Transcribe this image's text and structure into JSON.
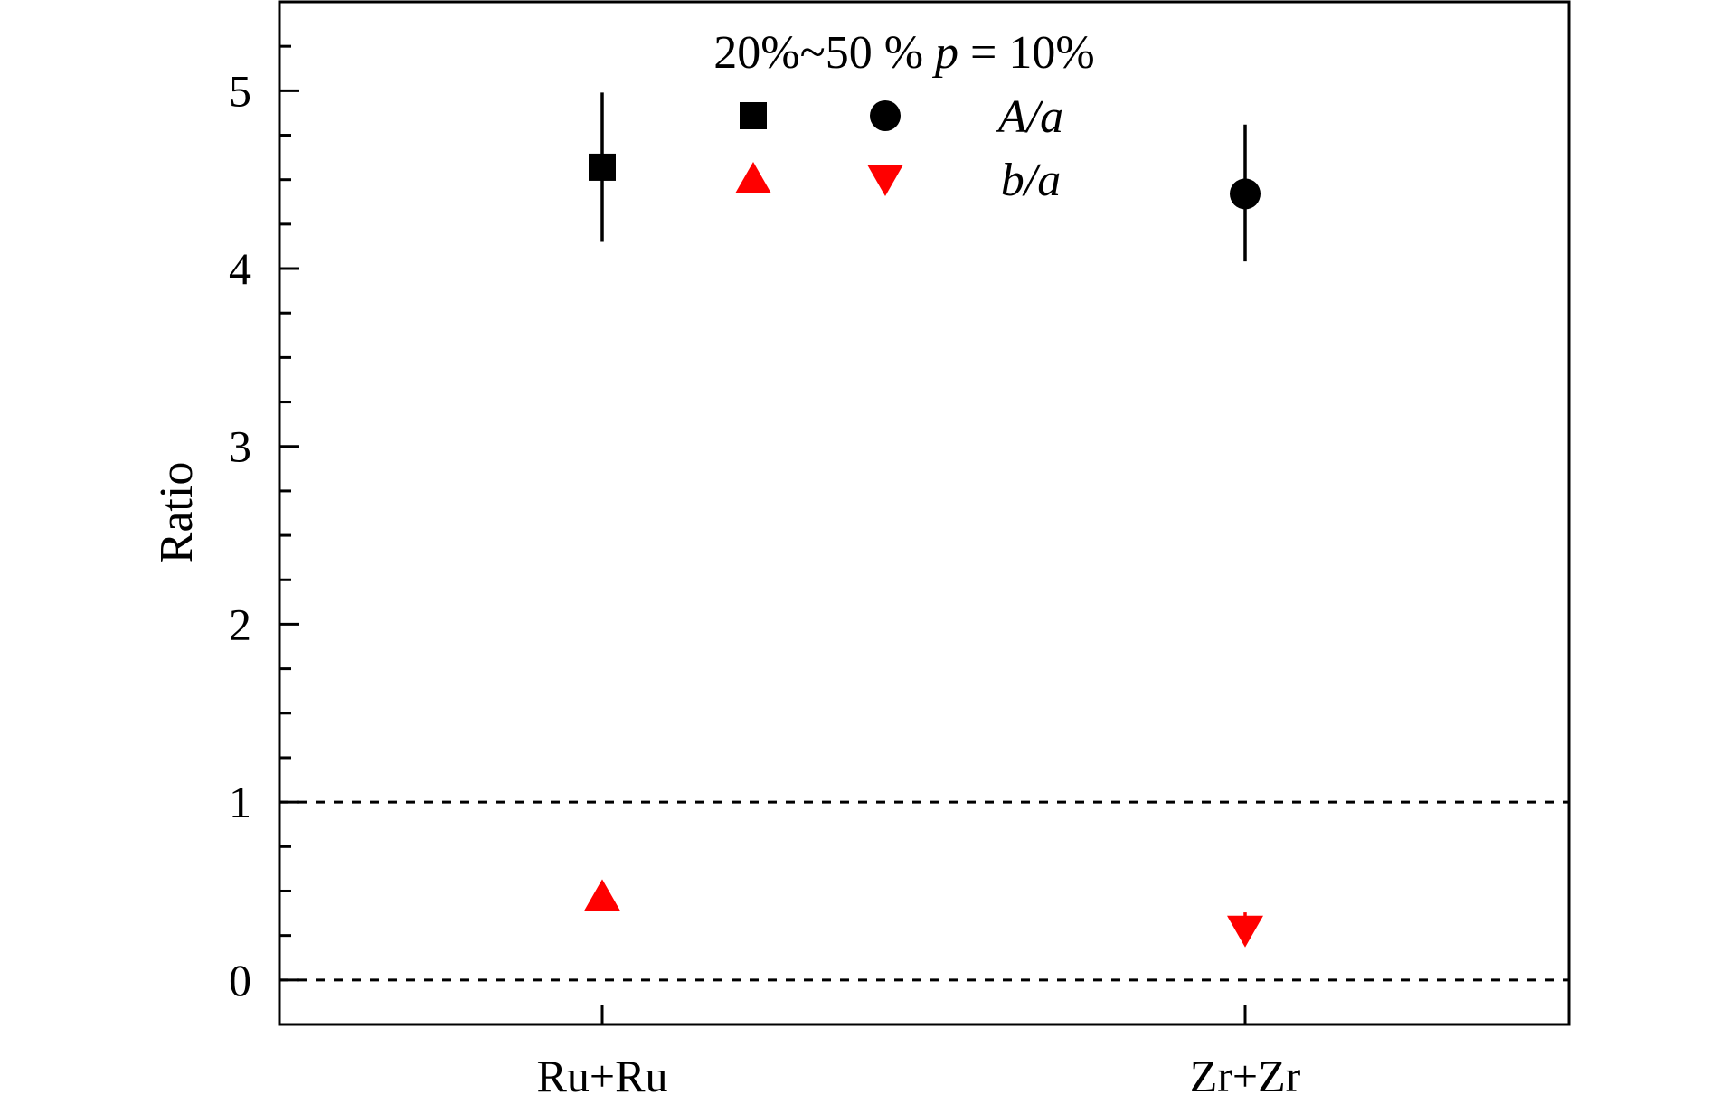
{
  "chart_data": {
    "type": "scatter",
    "title": "",
    "legend": {
      "header": "20%~50 % p = 10%",
      "header_parts": [
        {
          "text": "20%~50 % ",
          "italic": false
        },
        {
          "text": "p",
          "italic": true
        },
        {
          "text": " = 10%",
          "italic": false
        }
      ],
      "rows": [
        {
          "label": "A/a",
          "markers": [
            "square",
            "circle"
          ],
          "color": "#000000"
        },
        {
          "label": "b/a",
          "markers": [
            "triangle-up",
            "triangle-down"
          ],
          "color": "#ff0000"
        }
      ],
      "placement": "top-center"
    },
    "xlabel": "",
    "ylabel": "Ratio",
    "categories": [
      "Ru+Ru",
      "Zr+Zr"
    ],
    "ylim": [
      -0.25,
      5.5
    ],
    "yticks": [
      0,
      1,
      2,
      3,
      4,
      5
    ],
    "yminor_step": 0.25,
    "reference_lines": [
      0,
      1
    ],
    "series": [
      {
        "category": "Ru+Ru",
        "ratio": "A/a",
        "marker": "square",
        "color": "#000000",
        "y": 4.57,
        "err_low": 4.15,
        "err_high": 4.99
      },
      {
        "category": "Zr+Zr",
        "ratio": "A/a",
        "marker": "circle",
        "color": "#000000",
        "y": 4.42,
        "err_low": 4.04,
        "err_high": 4.81
      },
      {
        "category": "Ru+Ru",
        "ratio": "b/a",
        "marker": "triangle-up",
        "color": "#ff0000",
        "y": 0.47,
        "err_low": 0.4,
        "err_high": 0.52
      },
      {
        "category": "Zr+Zr",
        "ratio": "b/a",
        "marker": "triangle-down",
        "color": "#ff0000",
        "y": 0.28,
        "err_low": 0.2,
        "err_high": 0.38
      }
    ],
    "grid": false
  }
}
